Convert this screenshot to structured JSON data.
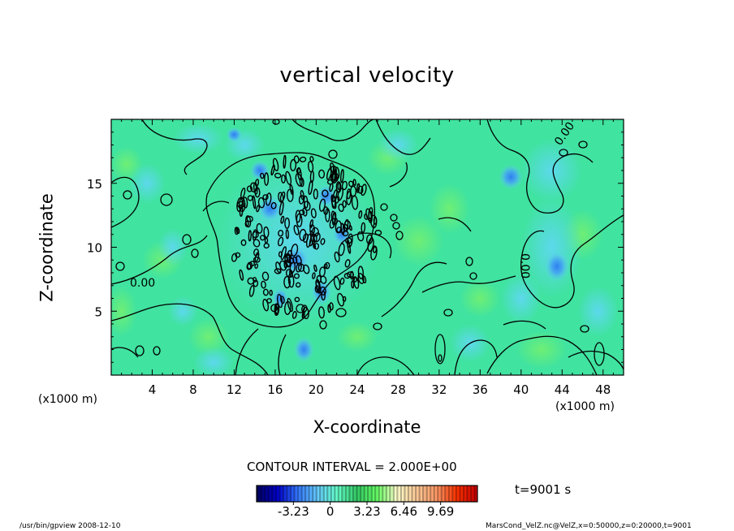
{
  "title": "vertical velocity",
  "chart_data": {
    "type": "heatmap",
    "title": "vertical velocity",
    "xlabel": "X-coordinate",
    "ylabel": "Z-coordinate",
    "x_unit": "(x1000 m)",
    "xlim": [
      0,
      50
    ],
    "ylim": [
      0,
      20
    ],
    "x_ticks": [
      4,
      8,
      12,
      16,
      20,
      24,
      28,
      32,
      36,
      40,
      44,
      48
    ],
    "y_ticks": [
      5,
      10,
      15
    ],
    "contour_labels": [
      "0.00",
      "0.00",
      "0.00"
    ],
    "contour_interval": "CONTOUR INTERVAL = 2.000E+00",
    "colorbar": {
      "ticks": [
        "-3.23",
        "0",
        "3.23",
        "6.46",
        "9.69"
      ],
      "tick_values": [
        -3.23,
        0,
        3.23,
        6.46,
        9.69
      ],
      "range": [
        -6.46,
        12.92
      ],
      "colors": [
        "#000066",
        "#0000cc",
        "#3377ff",
        "#66ccff",
        "#66ffcc",
        "#33cc66",
        "#66ff66",
        "#ffffcc",
        "#ffcc99",
        "#ff9966",
        "#ff3300",
        "#cc0000"
      ]
    },
    "field_colors": {
      "background": "#40e3a0",
      "lighter_green": "#6ef07c",
      "cyan": "#55d4ee",
      "blue": "#3ca3f0",
      "dark_blue": "#2060d8"
    }
  },
  "time_label": "t=9001 s",
  "footer": {
    "left": "/usr/bin/gpview   2008-12-10",
    "right": "MarsCond_VelZ.nc@VelZ,x=0:50000,z=0:20000,t=9001"
  }
}
